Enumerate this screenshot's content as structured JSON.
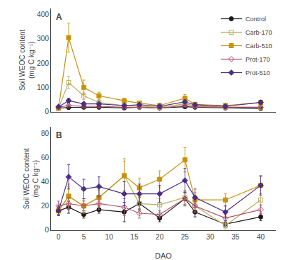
{
  "chart_data": [
    {
      "type": "line",
      "title": "A",
      "y_label": "Soil WEOC content\n(mg C kg⁻¹)",
      "x": [
        0,
        2,
        5,
        8,
        13,
        16,
        20,
        25,
        27,
        33,
        40
      ],
      "xlim": [
        -1.5,
        43
      ],
      "xticks": [
        0,
        5,
        10,
        15,
        20,
        25,
        30,
        35,
        40
      ],
      "ylim": [
        0,
        425
      ],
      "yticks": [
        0,
        100,
        200,
        300,
        400
      ],
      "grid": false,
      "legend": "upper right",
      "tick_labels": "y",
      "series": [
        {
          "name": "Control",
          "color": "#1a1a1a",
          "marker": "circle",
          "values": [
            14,
            17,
            18,
            18,
            15,
            18,
            15,
            20,
            18,
            15,
            13
          ],
          "error": [
            2,
            3,
            3,
            3,
            2,
            2,
            2,
            4,
            3,
            2,
            2
          ]
        },
        {
          "name": "Carb-170",
          "color": "#b8b060",
          "marker": "square-open",
          "values": [
            14,
            120,
            65,
            38,
            25,
            22,
            18,
            32,
            25,
            18,
            18
          ],
          "error": [
            2,
            25,
            15,
            8,
            5,
            5,
            3,
            8,
            5,
            4,
            4
          ]
        },
        {
          "name": "Carb-510",
          "color": "#c8920a",
          "marker": "square",
          "values": [
            14,
            305,
            100,
            65,
            45,
            35,
            25,
            55,
            30,
            25,
            38
          ],
          "error": [
            2,
            60,
            30,
            15,
            10,
            8,
            5,
            15,
            8,
            6,
            8
          ]
        },
        {
          "name": "Prot-170",
          "color": "#b05070",
          "marker": "diamond-open",
          "values": [
            18,
            25,
            22,
            22,
            18,
            18,
            15,
            25,
            20,
            18,
            18
          ],
          "error": [
            3,
            5,
            4,
            4,
            3,
            3,
            2,
            5,
            4,
            3,
            3
          ]
        },
        {
          "name": "Prot-510",
          "color": "#4b2e83",
          "marker": "diamond",
          "values": [
            20,
            45,
            32,
            32,
            25,
            28,
            22,
            40,
            28,
            22,
            38
          ],
          "error": [
            3,
            10,
            7,
            7,
            5,
            5,
            4,
            8,
            6,
            5,
            8
          ]
        }
      ]
    },
    {
      "type": "line",
      "title": "B",
      "x_label": "DAO",
      "y_label": "Soil WEOC content\n(mg C kg⁻¹)",
      "x": [
        0,
        2,
        5,
        8,
        13,
        16,
        20,
        25,
        27,
        33,
        40
      ],
      "xlim": [
        -1.5,
        43
      ],
      "xticks": [
        0,
        5,
        10,
        15,
        20,
        25,
        30,
        35,
        40
      ],
      "ylim": [
        0,
        85
      ],
      "yticks": [
        0,
        20,
        40,
        60,
        80
      ],
      "grid": false,
      "series": [
        {
          "name": "Control",
          "color": "#1a1a1a",
          "marker": "circle",
          "values": [
            16,
            19,
            13,
            17,
            15,
            22,
            10,
            26,
            15,
            5,
            11
          ],
          "error": [
            3,
            5,
            3,
            3,
            8,
            5,
            3,
            5,
            4,
            3,
            3
          ]
        },
        {
          "name": "Carb-170",
          "color": "#b8b060",
          "marker": "square-open",
          "values": [
            16,
            28,
            20,
            27,
            45,
            22,
            21,
            27,
            20,
            4,
            25
          ],
          "error": [
            4,
            8,
            5,
            6,
            12,
            6,
            5,
            6,
            5,
            3,
            5
          ]
        },
        {
          "name": "Carb-510",
          "color": "#c8920a",
          "marker": "square",
          "values": [
            16,
            28,
            20,
            27,
            45,
            35,
            42,
            58,
            25,
            25,
            37
          ],
          "error": [
            4,
            10,
            6,
            7,
            14,
            8,
            7,
            10,
            6,
            5,
            7
          ]
        },
        {
          "name": "Prot-170",
          "color": "#b05070",
          "marker": "diamond-open",
          "values": [
            20,
            22,
            20,
            22,
            19,
            14,
            13,
            26,
            20,
            10,
            17
          ],
          "error": [
            4,
            5,
            4,
            5,
            7,
            4,
            3,
            6,
            5,
            3,
            4
          ]
        },
        {
          "name": "Prot-510",
          "color": "#4b2e83",
          "marker": "diamond",
          "values": [
            16,
            44,
            34,
            36,
            30,
            30,
            30,
            41,
            27,
            15,
            37
          ],
          "error": [
            4,
            10,
            8,
            8,
            10,
            8,
            7,
            10,
            7,
            5,
            8
          ]
        }
      ]
    }
  ]
}
